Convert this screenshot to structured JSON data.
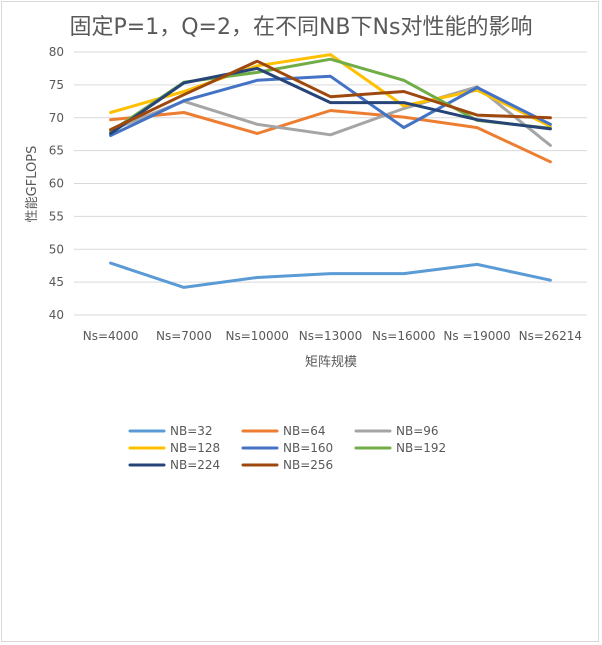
{
  "chart_data": {
    "type": "line",
    "title": "固定P=1，Q=2，在不同NB下Ns对性能的影响",
    "xlabel": "矩阵规模",
    "ylabel": "性能GFLOPS",
    "ylim": [
      40,
      80
    ],
    "yticks": [
      40,
      45,
      50,
      55,
      60,
      65,
      70,
      75,
      80
    ],
    "grid": true,
    "legend_position": "bottom",
    "categories": [
      "Ns=4000",
      "Ns=7000",
      "Ns=10000",
      "Ns=13000",
      "Ns=16000",
      "Ns =19000",
      "Ns=26214"
    ],
    "series": [
      {
        "name": "NB=32",
        "color": "#5B9BD5",
        "values": [
          47.9,
          44.2,
          45.7,
          46.3,
          46.3,
          47.7,
          45.3
        ]
      },
      {
        "name": "NB=64",
        "color": "#ED7D31",
        "values": [
          69.7,
          70.8,
          67.6,
          71.1,
          70.1,
          68.5,
          63.3
        ]
      },
      {
        "name": "NB=96",
        "color": "#A5A5A5",
        "values": [
          68.1,
          72.5,
          69.0,
          67.4,
          71.4,
          74.7,
          65.8
        ]
      },
      {
        "name": "NB=128",
        "color": "#FFC000",
        "values": [
          70.8,
          74.0,
          77.9,
          79.6,
          71.8,
          74.2,
          68.7
        ]
      },
      {
        "name": "NB=160",
        "color": "#4472C4",
        "values": [
          67.3,
          72.6,
          75.7,
          76.3,
          68.5,
          74.6,
          69.0
        ]
      },
      {
        "name": "NB=192",
        "color": "#70AD47",
        "values": [
          67.9,
          75.4,
          76.9,
          78.9,
          75.7,
          69.6,
          68.4
        ]
      },
      {
        "name": "NB=224",
        "color": "#264478",
        "values": [
          67.6,
          75.3,
          77.5,
          72.3,
          72.3,
          69.7,
          68.3
        ]
      },
      {
        "name": "NB=256",
        "color": "#9E480E",
        "values": [
          68.2,
          73.5,
          78.6,
          73.2,
          74.0,
          70.4,
          70.0
        ]
      }
    ]
  }
}
